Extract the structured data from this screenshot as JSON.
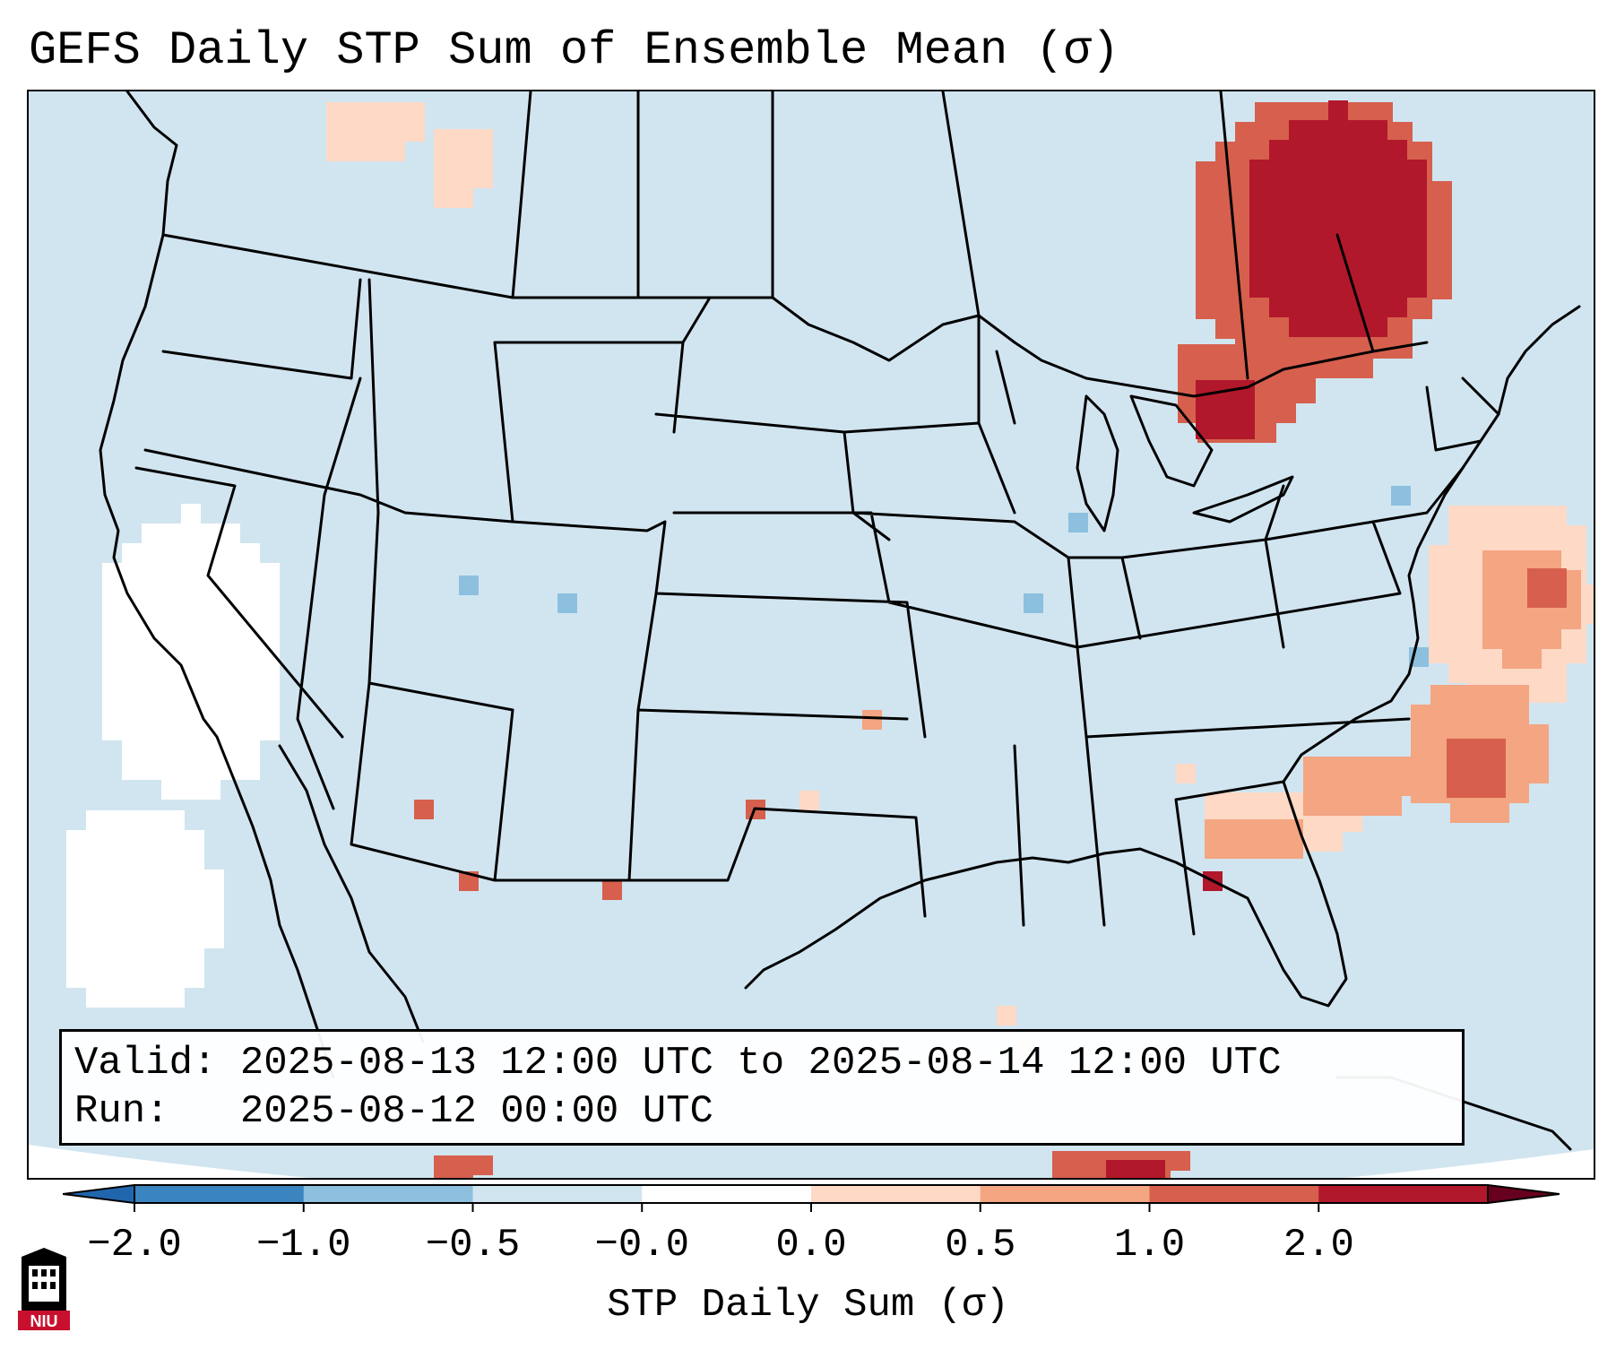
{
  "title": "GEFS Daily STP Sum of Ensemble Mean (σ)",
  "info": {
    "valid_line": "Valid: 2025-08-13 12:00 UTC to 2025-08-14 12:00 UTC",
    "run_line": "Run:   2025-08-12 00:00 UTC"
  },
  "colorbar": {
    "label": "STP Daily Sum (σ)",
    "ticks": [
      "−2.0",
      "−1.0",
      "−0.5",
      "−0.0",
      "0.0",
      "0.5",
      "1.0",
      "2.0"
    ],
    "bin_colors": [
      "#3a84bf",
      "#8cc0de",
      "#d1e5f0",
      "#ffffff",
      "#fdd9c6",
      "#f4a582",
      "#d6604d",
      "#b2182b"
    ],
    "extend": "both"
  },
  "map": {
    "ocean_color": "#d1e5f0",
    "projection_edge_color": "#ffffff",
    "features": [
      "coastlines",
      "country borders",
      "us state borders"
    ]
  },
  "logo": {
    "text": "NIU"
  }
}
